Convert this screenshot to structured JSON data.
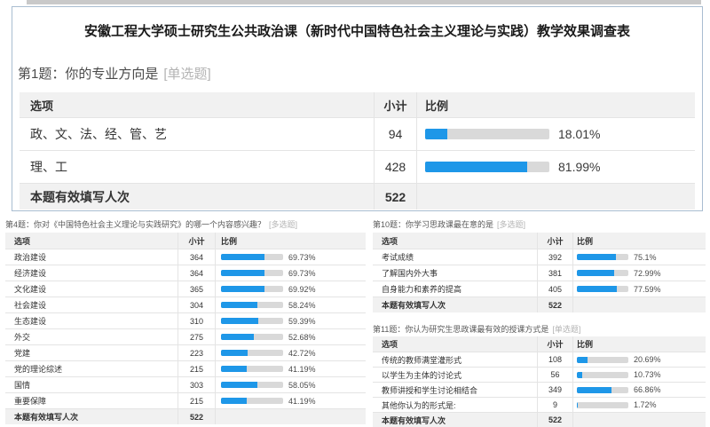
{
  "colors": {
    "accent": "#1e97e8",
    "bar_track": "#d9d9d9",
    "header_row_bg": "#f1f1f1",
    "box_border": "#a9bdd1",
    "top_strip": "#c9c9c9"
  },
  "survey_title": "安徽工程大学硕士研究生公共政治课（新时代中国特色社会主义理论与实践）教学效果调查表",
  "columns": {
    "option": "选项",
    "subtotal": "小计",
    "ratio": "比例"
  },
  "footer_label": "本题有效填写人次",
  "questions": {
    "q1": {
      "title": "第1题：你的专业方向是",
      "tag": "[单选题]",
      "total": "522",
      "rows": [
        {
          "label": "政、文、法、经、管、艺",
          "count": "94",
          "percent": "18.01%"
        },
        {
          "label": "理、工",
          "count": "428",
          "percent": "81.99%"
        }
      ]
    },
    "q4": {
      "title": "第4题：你对《中国特色社会主义理论与实践研究》的哪一个内容感兴趣？",
      "tag": "[多选题]",
      "total": "522",
      "rows": [
        {
          "label": "政治建设",
          "count": "364",
          "percent": "69.73%"
        },
        {
          "label": "经济建设",
          "count": "364",
          "percent": "69.73%"
        },
        {
          "label": "文化建设",
          "count": "365",
          "percent": "69.92%"
        },
        {
          "label": "社会建设",
          "count": "304",
          "percent": "58.24%"
        },
        {
          "label": "生态建设",
          "count": "310",
          "percent": "59.39%"
        },
        {
          "label": "外交",
          "count": "275",
          "percent": "52.68%"
        },
        {
          "label": "党建",
          "count": "223",
          "percent": "42.72%"
        },
        {
          "label": "党的理论综述",
          "count": "215",
          "percent": "41.19%"
        },
        {
          "label": "国情",
          "count": "303",
          "percent": "58.05%"
        },
        {
          "label": "重要保障",
          "count": "215",
          "percent": "41.19%"
        }
      ]
    },
    "q10": {
      "title": "第10题：你学习思政课最在意的是",
      "tag": "[多选题]",
      "total": "522",
      "rows": [
        {
          "label": "考试成绩",
          "count": "392",
          "percent": "75.1%"
        },
        {
          "label": "了解国内外大事",
          "count": "381",
          "percent": "72.99%"
        },
        {
          "label": "自身能力和素养的提高",
          "count": "405",
          "percent": "77.59%"
        }
      ]
    },
    "q11": {
      "title": "第11题：你认为研究生思政课最有效的授课方式是",
      "tag": "[单选题]",
      "total": "522",
      "rows": [
        {
          "label": "传统的教师满堂灌形式",
          "count": "108",
          "percent": "20.69%"
        },
        {
          "label": "以学生为主体的讨论式",
          "count": "56",
          "percent": "10.73%"
        },
        {
          "label": "教师讲授和学生讨论相结合",
          "count": "349",
          "percent": "66.86%"
        },
        {
          "label": "其他你认为的形式是:",
          "count": "9",
          "percent": "1.72%"
        }
      ]
    }
  }
}
